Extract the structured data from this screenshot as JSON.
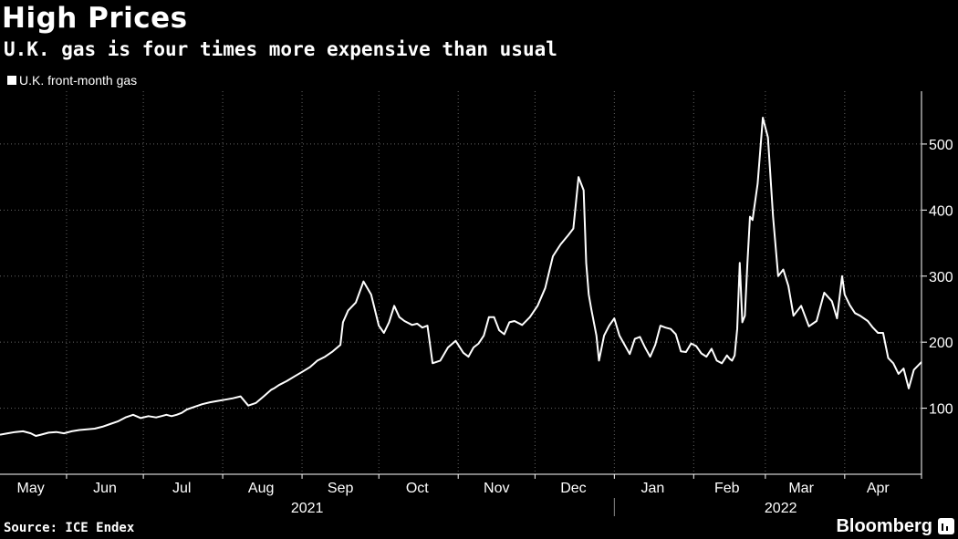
{
  "header": {
    "title": "High Prices",
    "subtitle": "U.K. gas is four times more expensive than usual"
  },
  "legend": {
    "label": "U.K. front-month gas"
  },
  "footer": {
    "source": "Source: ICE Endex",
    "brand": "Bloomberg"
  },
  "colors": {
    "background": "#000000",
    "line": "#ffffff",
    "grid": "#666666"
  },
  "chart_data": {
    "type": "line",
    "title": "High Prices",
    "subtitle": "U.K. gas is four times more expensive than usual",
    "xlabel": "",
    "ylabel": "",
    "grid": true,
    "legend": "top-left",
    "ylim": [
      0,
      580
    ],
    "xlim": [
      0,
      360
    ],
    "y_ticks": [
      100,
      200,
      300,
      400,
      500
    ],
    "month_labels": [
      {
        "label": "May",
        "t": 12
      },
      {
        "label": "Jun",
        "t": 41
      },
      {
        "label": "Jul",
        "t": 71
      },
      {
        "label": "Aug",
        "t": 102
      },
      {
        "label": "Sep",
        "t": 133
      },
      {
        "label": "Oct",
        "t": 163
      },
      {
        "label": "Nov",
        "t": 194
      },
      {
        "label": "Dec",
        "t": 224
      },
      {
        "label": "Jan",
        "t": 255
      },
      {
        "label": "Feb",
        "t": 284
      },
      {
        "label": "Mar",
        "t": 313
      },
      {
        "label": "Apr",
        "t": 343
      }
    ],
    "gridlines_x": [
      26,
      56,
      87,
      118,
      148,
      179,
      209,
      240,
      271,
      299,
      330,
      360
    ],
    "year_labels": [
      {
        "label": "2021",
        "t": 120
      },
      {
        "label": "2022",
        "t": 305
      }
    ],
    "year_divider": 240,
    "series": [
      {
        "name": "U.K. front-month gas",
        "x": [
          0,
          3,
          6,
          9,
          12,
          14,
          16,
          19,
          22,
          25,
          28,
          31,
          34,
          37,
          40,
          43,
          46,
          49,
          52,
          55,
          58,
          61,
          63,
          65,
          67,
          69,
          71,
          73,
          76,
          79,
          82,
          85,
          88,
          91,
          94,
          97,
          100,
          103,
          106,
          107,
          109,
          112,
          115,
          118,
          121,
          124,
          127,
          130,
          133,
          134,
          136,
          139,
          142,
          145,
          148,
          150,
          152,
          154,
          156,
          158,
          161,
          163,
          165,
          167,
          169,
          172,
          175,
          178,
          181,
          183,
          185,
          187,
          189,
          191,
          193,
          195,
          197,
          199,
          201,
          204,
          207,
          210,
          213,
          216,
          219,
          222,
          224,
          226,
          228,
          229,
          230,
          231,
          233,
          234,
          236,
          238,
          240,
          242,
          244,
          246,
          248,
          250,
          252,
          254,
          256,
          258,
          260,
          262,
          264,
          266,
          268,
          270,
          272,
          274,
          276,
          278,
          280,
          282,
          284,
          285,
          286,
          287,
          288,
          289,
          290,
          291,
          292,
          293,
          294,
          296,
          298,
          300,
          302,
          304,
          306,
          308,
          310,
          313,
          316,
          319,
          322,
          325,
          327,
          329,
          330,
          332,
          334,
          336,
          339,
          341,
          343,
          345,
          347,
          349,
          351,
          353,
          355,
          357,
          358,
          360
        ],
        "values": [
          60,
          62,
          64,
          65,
          62,
          58,
          60,
          63,
          64,
          62,
          65,
          67,
          68,
          69,
          72,
          76,
          80,
          86,
          90,
          85,
          88,
          86,
          88,
          90,
          88,
          90,
          93,
          98,
          102,
          106,
          109,
          111,
          113,
          115,
          118,
          104,
          108,
          118,
          128,
          130,
          135,
          141,
          148,
          155,
          162,
          172,
          178,
          186,
          196,
          230,
          248,
          260,
          292,
          272,
          225,
          214,
          230,
          255,
          238,
          232,
          226,
          228,
          222,
          225,
          168,
          172,
          192,
          202,
          184,
          178,
          192,
          198,
          210,
          238,
          238,
          218,
          212,
          230,
          232,
          226,
          238,
          255,
          282,
          330,
          348,
          362,
          372,
          450,
          430,
          320,
          272,
          250,
          210,
          172,
          210,
          225,
          236,
          210,
          196,
          182,
          205,
          208,
          192,
          178,
          196,
          225,
          222,
          220,
          212,
          186,
          185,
          198,
          194,
          183,
          178,
          190,
          172,
          168,
          180,
          175,
          172,
          180,
          220,
          320,
          230,
          240,
          320,
          390,
          385,
          440,
          540,
          510,
          390,
          300,
          310,
          285,
          240,
          255,
          224,
          232,
          275,
          262,
          236,
          300,
          272,
          256,
          244,
          240,
          232,
          222,
          214,
          214,
          176,
          168,
          152,
          160,
          130,
          158,
          162,
          170
        ]
      }
    ]
  }
}
